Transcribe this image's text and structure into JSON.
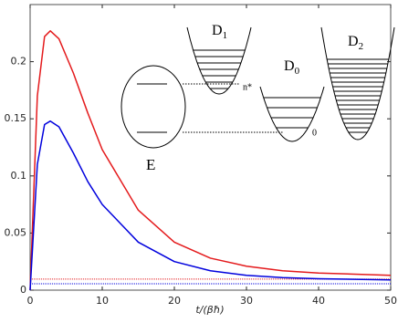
{
  "chart_data": {
    "type": "line",
    "xlabel": "t/(βħ)",
    "x": [
      0,
      1,
      2,
      2.8,
      4,
      6,
      8,
      10,
      15,
      20,
      25,
      30,
      35,
      40,
      45,
      50
    ],
    "series": [
      {
        "color": "#e41a1c",
        "values": [
          0,
          0.17,
          0.222,
          0.227,
          0.22,
          0.19,
          0.155,
          0.123,
          0.07,
          0.042,
          0.028,
          0.021,
          0.017,
          0.015,
          0.014,
          0.013
        ]
      },
      {
        "color": "#0000dd",
        "values": [
          0,
          0.11,
          0.145,
          0.148,
          0.143,
          0.12,
          0.095,
          0.075,
          0.042,
          0.025,
          0.017,
          0.013,
          0.011,
          0.01,
          0.0095,
          0.009
        ]
      }
    ],
    "hlines": [
      {
        "color": "#e41a1c",
        "value": 0.0097
      },
      {
        "color": "#0000dd",
        "value": 0.0056
      }
    ],
    "xlim": [
      0,
      50
    ],
    "xticks": [
      0,
      10,
      20,
      30,
      40,
      50
    ],
    "ylim": [
      0,
      0.25
    ],
    "yticks": [
      0,
      0.05,
      0.1,
      0.15,
      0.2
    ]
  },
  "inset": {
    "E": "E",
    "D1": {
      "base": "D",
      "sub": "1"
    },
    "D0": {
      "base": "D",
      "sub": "0"
    },
    "D2": {
      "base": "D",
      "sub": "2"
    },
    "n_star": "n*",
    "zero": "0"
  }
}
